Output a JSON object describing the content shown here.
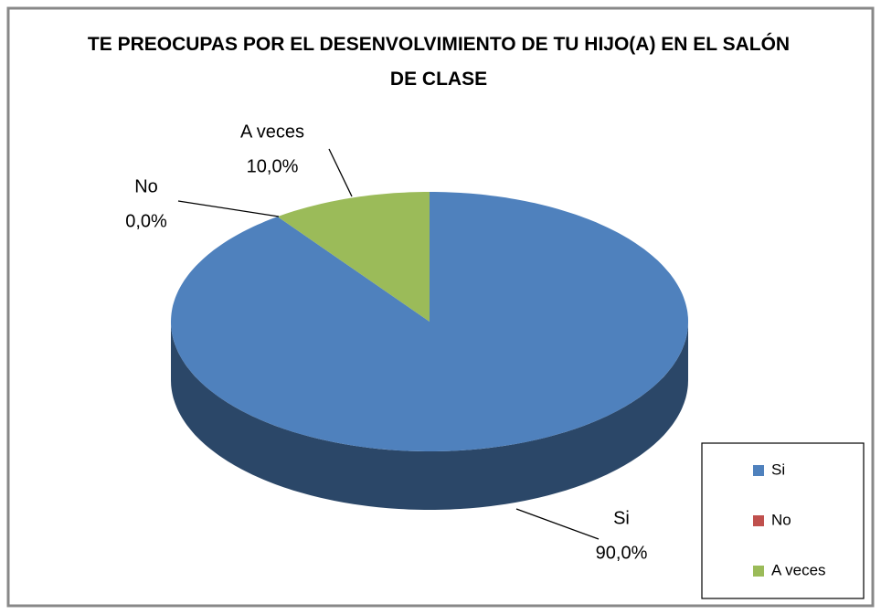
{
  "chart_data": {
    "type": "pie",
    "title": "TE PREOCUPAS POR EL DESENVOLVIMIENTO DE TU HIJO(A) EN EL SALÓN DE CLASE",
    "categories": [
      "Si",
      "No",
      "A veces"
    ],
    "values": [
      90,
      0,
      10
    ],
    "value_labels": [
      "90,0%",
      "0,0%",
      "10,0%"
    ],
    "colors": [
      "#4f81bd",
      "#c0504d",
      "#9bbb59"
    ],
    "legend": "right"
  }
}
